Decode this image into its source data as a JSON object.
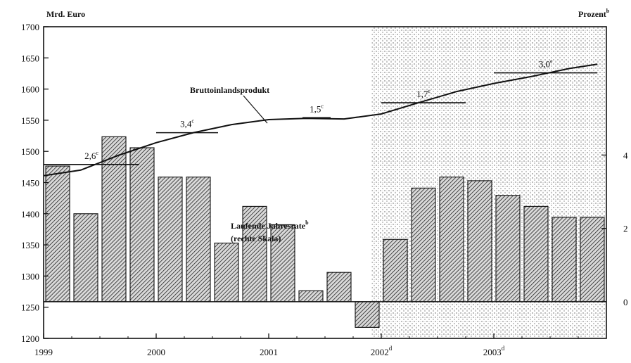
{
  "chart_data": {
    "type": "bar+line",
    "left_axis": {
      "title": "Mrd. Euro",
      "ylim": [
        1200,
        1700
      ],
      "ticks": [
        1700,
        1650,
        1600,
        1550,
        1500,
        1450,
        1400,
        1350,
        1300,
        1250,
        1200
      ],
      "tick_labels": [
        "1700",
        "1650",
        "1600",
        "1550",
        "1500",
        "1450",
        "1400",
        "1350",
        "1300",
        "1250",
        "1200"
      ]
    },
    "right_axis": {
      "title": "Prozent",
      "title_sup": "b",
      "ylim": [
        -1,
        7.5
      ],
      "ticks": [
        4,
        2,
        0
      ],
      "tick_labels": [
        "4",
        "2",
        "0"
      ]
    },
    "x_axis": {
      "xlim": [
        1999,
        2004
      ],
      "ticks": [
        1999,
        2000,
        2001,
        2002,
        2003
      ],
      "tick_labels": [
        "1999",
        "2000",
        "2001",
        "2002",
        "2003"
      ],
      "tick_sups": [
        "",
        "",
        "",
        "d",
        "d"
      ]
    },
    "forecast_start": 2001.917,
    "line_series": {
      "name": "Bruttoinlandsprodukt",
      "x": [
        1999.0,
        1999.33,
        1999.67,
        2000.0,
        2000.33,
        2000.67,
        2001.0,
        2001.33,
        2001.67,
        2002.0,
        2002.33,
        2002.67,
        2003.0,
        2003.33,
        2003.67,
        2003.92
      ],
      "values": [
        1461,
        1470,
        1494,
        1514,
        1530,
        1543,
        1551,
        1553,
        1552,
        1560,
        1578,
        1596,
        1609,
        1620,
        1633,
        1640
      ]
    },
    "bar_series": {
      "name": "Laufende Jahresrate",
      "name_sup": "b",
      "name_line2": "(rechte Skala)",
      "x": [
        1999.125,
        1999.375,
        1999.625,
        1999.875,
        2000.125,
        2000.375,
        2000.625,
        2000.875,
        2001.125,
        2001.375,
        2001.625,
        2001.875,
        2002.125,
        2002.375,
        2002.625,
        2002.875,
        2003.125,
        2003.375,
        2003.625,
        2003.875
      ],
      "values": [
        3.7,
        2.4,
        4.5,
        4.2,
        3.4,
        3.4,
        1.6,
        2.6,
        2.1,
        0.3,
        0.8,
        -0.7,
        1.7,
        3.1,
        3.4,
        3.3,
        2.9,
        2.6,
        2.3,
        2.3
      ]
    },
    "annual_averages": [
      {
        "label": "2,6",
        "sup": "c",
        "x_start": 1999.0,
        "x_end": 1999.85,
        "value": 1479
      },
      {
        "label": "3,4",
        "sup": "c",
        "x_start": 2000.0,
        "x_end": 2000.55,
        "value": 1530
      },
      {
        "label": "1,5",
        "sup": "c",
        "x_start": 2001.3,
        "x_end": 2001.55,
        "value": 1554
      },
      {
        "label": "1,7",
        "sup": "c",
        "x_start": 2002.0,
        "x_end": 2002.75,
        "value": 1578
      },
      {
        "label": "3,0",
        "sup": "e",
        "x_start": 2003.0,
        "x_end": 2003.92,
        "value": 1626
      }
    ],
    "grid": false
  }
}
